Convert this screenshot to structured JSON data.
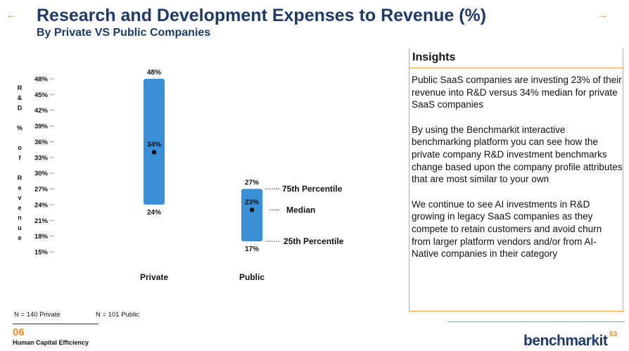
{
  "header": {
    "title": "Research and Development Expenses to Revenue (%)",
    "subtitle": "By Private VS Public Companies",
    "arrow_left": "←",
    "arrow_right": "→"
  },
  "chart_data": {
    "type": "range-bar",
    "title": "",
    "ylabel": "R&D % of Revenue",
    "ylabel_chars": [
      "R",
      "&",
      "D",
      "",
      "%",
      "",
      "o",
      "f",
      "",
      "R",
      "e",
      "v",
      "e",
      "n",
      "u",
      "e"
    ],
    "ylim": [
      15,
      48
    ],
    "yticks": [
      15,
      18,
      21,
      24,
      27,
      30,
      33,
      36,
      39,
      42,
      45,
      48
    ],
    "ytick_labels": [
      "15%",
      "18%",
      "21%",
      "24%",
      "27%",
      "30%",
      "33%",
      "36%",
      "39%",
      "42%",
      "45%",
      "48%"
    ],
    "categories": [
      "Private",
      "Public"
    ],
    "series": [
      {
        "p25": 24,
        "median": 34,
        "p75": 48,
        "p25_label": "24%",
        "median_label": "34%",
        "p75_label": "48%"
      },
      {
        "p25": 17,
        "median": 23,
        "p75": 27,
        "p25_label": "17%",
        "median_label": "23%",
        "p75_label": "27%"
      }
    ],
    "annotations": {
      "p75": "75th Percentile",
      "median": "Median",
      "p25": "25th Percentile"
    },
    "bar_color": "#3b8fd6"
  },
  "insights": {
    "title": "Insights",
    "paragraphs": [
      "Public SaaS companies are investing 23% of their revenue into R&D versus 34% median for private SaaS companies",
      "By using the Benchmarkit interactive benchmarking platform you can see how the private company R&D investment benchmarks change based upon the company profile attributes that are most similar to your own",
      "We continue to see AI investments in R&D growing in legacy SaaS companies as they compete to retain customers and avoid churn from larger platform vendors and/or from AI-Native companies in their category"
    ]
  },
  "notes": {
    "private": "N = 140 Private",
    "public": "N = 101 Public"
  },
  "footer": {
    "section_number": "06",
    "section_name": "Human Capital Efficiency",
    "logo": "benchmarkit",
    "page_number": "53"
  },
  "colors": {
    "accent": "#f08a24",
    "title": "#1f3a68"
  }
}
